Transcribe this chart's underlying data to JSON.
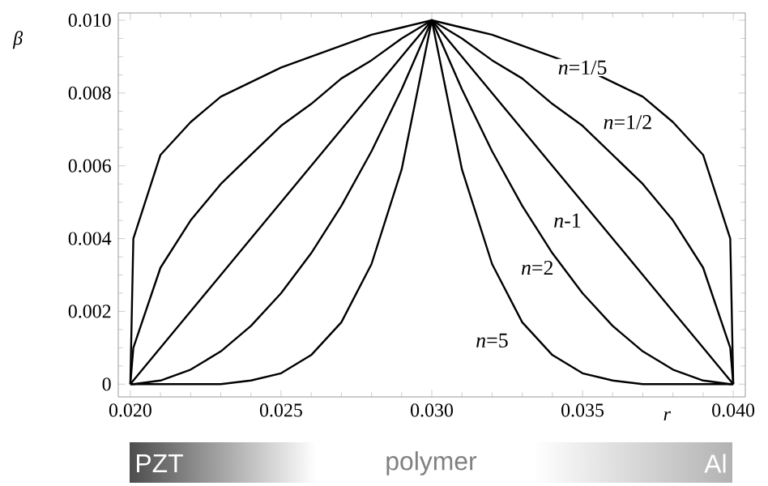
{
  "chart_data": {
    "type": "line",
    "xlabel": "r",
    "ylabel": "β",
    "x": [
      0.02,
      0.0201,
      0.021,
      0.022,
      0.023,
      0.024,
      0.025,
      0.026,
      0.027,
      0.028,
      0.029,
      0.03,
      0.031,
      0.032,
      0.033,
      0.034,
      0.035,
      0.036,
      0.037,
      0.038,
      0.039,
      0.0399,
      0.04
    ],
    "series": [
      {
        "name": "*n*=1/5",
        "color": "#000000",
        "values": [
          0,
          0.004,
          0.0063,
          0.0072,
          0.0079,
          0.0083,
          0.0087,
          0.009,
          0.0093,
          0.0096,
          0.0098,
          0.01,
          0.0098,
          0.0096,
          0.0093,
          0.009,
          0.0087,
          0.0083,
          0.0079,
          0.0072,
          0.0063,
          0.004,
          0
        ]
      },
      {
        "name": "*n*=1/2",
        "color": "#000000",
        "values": [
          0,
          0.001,
          0.0032,
          0.0045,
          0.0055,
          0.0063,
          0.0071,
          0.0077,
          0.0084,
          0.0089,
          0.0095,
          0.01,
          0.0095,
          0.0089,
          0.0084,
          0.0077,
          0.0071,
          0.0063,
          0.0055,
          0.0045,
          0.0032,
          0.001,
          0
        ]
      },
      {
        "name": "*n*-1",
        "color": "#000000",
        "values": [
          0,
          0.0001,
          0.001,
          0.002,
          0.003,
          0.004,
          0.005,
          0.006,
          0.007,
          0.008,
          0.009,
          0.01,
          0.009,
          0.008,
          0.007,
          0.006,
          0.005,
          0.004,
          0.003,
          0.002,
          0.001,
          0.0001,
          0
        ]
      },
      {
        "name": "*n*=2",
        "color": "#000000",
        "values": [
          0,
          0,
          0.0001,
          0.0004,
          0.0009,
          0.0016,
          0.0025,
          0.0036,
          0.0049,
          0.0064,
          0.0081,
          0.01,
          0.0081,
          0.0064,
          0.0049,
          0.0036,
          0.0025,
          0.0016,
          0.0009,
          0.0004,
          0.0001,
          0,
          0
        ]
      },
      {
        "name": "*n*=5",
        "color": "#000000",
        "values": [
          0,
          0,
          0,
          0,
          0,
          0.0001,
          0.0003,
          0.0008,
          0.0017,
          0.0033,
          0.0059,
          0.01,
          0.0059,
          0.0033,
          0.0017,
          0.0008,
          0.0003,
          0.0001,
          0,
          0,
          0,
          0,
          0
        ]
      }
    ],
    "xlim": [
      0.0196,
      0.0404
    ],
    "xticks": [
      {
        "value": 0.02,
        "label": "0.020"
      },
      0.025,
      {
        "value": 0.03,
        "label": "0.030"
      },
      0.035,
      {
        "value": 0.04,
        "label": "0.040"
      }
    ],
    "ylim": [
      -0.00035,
      0.0102
    ],
    "yticks": [
      0,
      0.002,
      0.004,
      0.006,
      0.008,
      {
        "value": 0.01,
        "label": "0.010"
      }
    ],
    "grid": false,
    "legend": false,
    "marker": "none",
    "line_style": "solid",
    "annotations": [
      "PZT",
      "polymer",
      "Al"
    ]
  }
}
